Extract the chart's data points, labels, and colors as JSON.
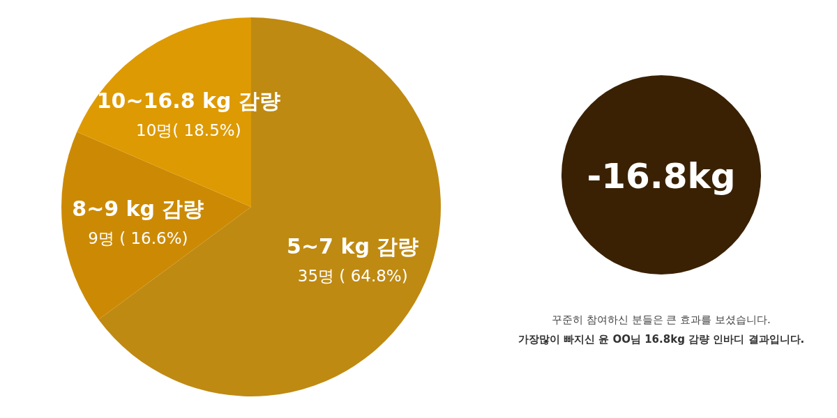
{
  "chart_data": {
    "type": "pie",
    "categories": [
      "5~7 kg 감량",
      "8~9 kg 감량",
      "10~16.8 kg 감량"
    ],
    "values": [
      64.8,
      16.6,
      18.5
    ],
    "value_labels": [
      "35명 ( 64.8%)",
      "9명 ( 16.6%)",
      "10명( 18.5%)"
    ],
    "colors": [
      "#bf8a12",
      "#cc8a04",
      "#de9a02"
    ],
    "annotations": [
      "-16.8kg",
      "꾸준히 참여하신 분들은 큰 효과를 보셨습니다.",
      "가장많이 빠지신 윤 OO님 16.8kg 감량 인바디 결과입니다."
    ]
  }
}
